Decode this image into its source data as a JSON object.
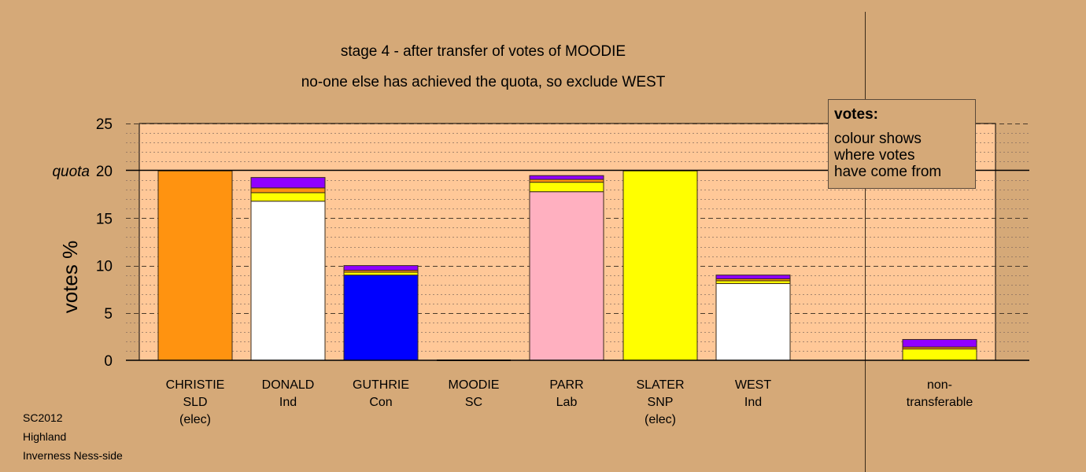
{
  "chart_data": {
    "type": "bar",
    "title": "stage 4 - after transfer of votes of MOODIE",
    "subtitle": "no-one else has achieved the quota, so exclude WEST",
    "ylabel": "votes %",
    "quota_label": "quota",
    "quota": 20,
    "ylim": [
      0,
      25
    ],
    "yticks": [
      0,
      5,
      10,
      15,
      20,
      25
    ],
    "grid": true,
    "stack_colors": {
      "orange": "#ff9310",
      "white": "#ffffff",
      "blue": "#0000ff",
      "pink": "#ffb0c0",
      "yellow": "#ffff00",
      "purple": "#9000ff"
    },
    "candidates": [
      {
        "line1": "CHRISTIE",
        "line2": "SLD",
        "line3": "(elec)",
        "segments": [
          {
            "color": "orange",
            "value": 20
          }
        ]
      },
      {
        "line1": "DONALD",
        "line2": "Ind",
        "line3": "",
        "segments": [
          {
            "color": "white",
            "value": 16.8
          },
          {
            "color": "yellow",
            "value": 0.9
          },
          {
            "color": "orange",
            "value": 0.5
          },
          {
            "color": "purple",
            "value": 1.1
          }
        ]
      },
      {
        "line1": "GUTHRIE",
        "line2": "Con",
        "line3": "",
        "segments": [
          {
            "color": "blue",
            "value": 9.0
          },
          {
            "color": "yellow",
            "value": 0.3
          },
          {
            "color": "orange",
            "value": 0.2
          },
          {
            "color": "purple",
            "value": 0.5
          }
        ]
      },
      {
        "line1": "MOODIE",
        "line2": "SC",
        "line3": "",
        "segments": []
      },
      {
        "line1": "PARR",
        "line2": "Lab",
        "line3": "",
        "segments": [
          {
            "color": "pink",
            "value": 17.8
          },
          {
            "color": "yellow",
            "value": 1.0
          },
          {
            "color": "orange",
            "value": 0.3
          },
          {
            "color": "purple",
            "value": 0.4
          }
        ]
      },
      {
        "line1": "SLATER",
        "line2": "SNP",
        "line3": "(elec)",
        "segments": [
          {
            "color": "yellow",
            "value": 20
          }
        ]
      },
      {
        "line1": "WEST",
        "line2": "Ind",
        "line3": "",
        "segments": [
          {
            "color": "white",
            "value": 8.1
          },
          {
            "color": "yellow",
            "value": 0.3
          },
          {
            "color": "orange",
            "value": 0.2
          },
          {
            "color": "purple",
            "value": 0.4
          }
        ]
      },
      {
        "line1": "non-",
        "line2": "transferable",
        "line3": "",
        "segments": [
          {
            "color": "yellow",
            "value": 1.2
          },
          {
            "color": "orange",
            "value": 0.2
          },
          {
            "color": "purple",
            "value": 0.8
          }
        ]
      }
    ]
  },
  "legend": {
    "heading": "votes:",
    "line1": "colour shows",
    "line2": "where votes",
    "line3": "have come from"
  },
  "footer": {
    "line1": "SC2012",
    "line2": "Highland",
    "line3": "Inverness Ness-side"
  }
}
